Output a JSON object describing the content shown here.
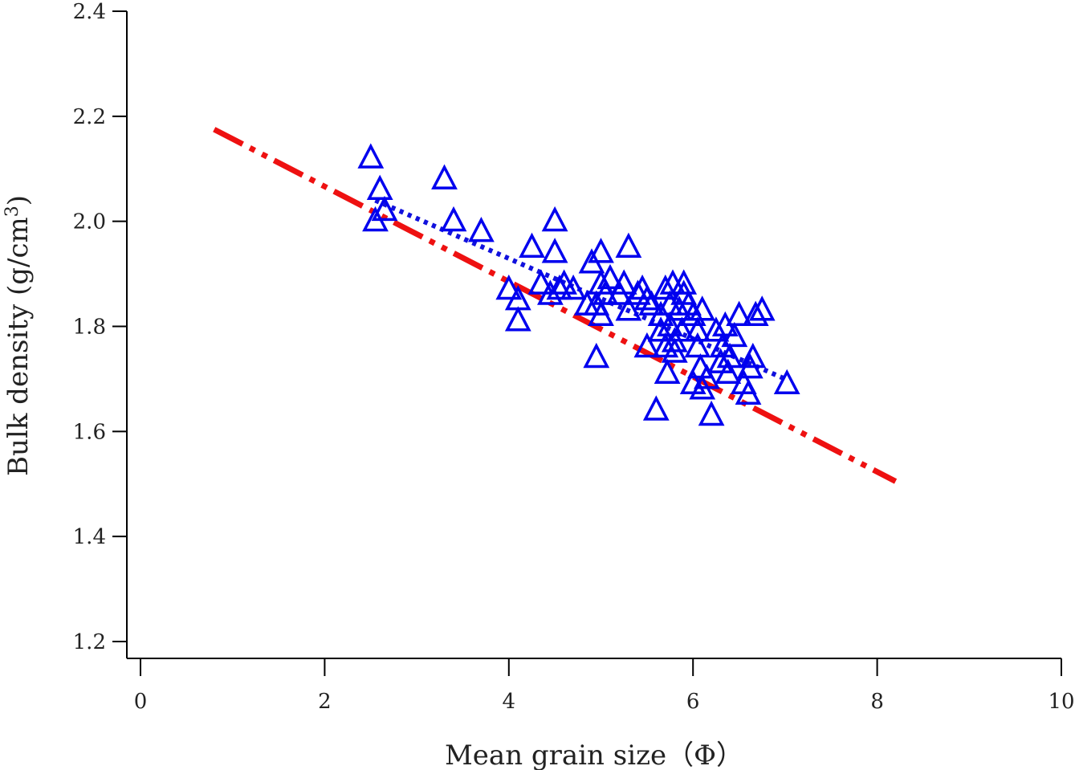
{
  "chart_data": {
    "type": "scatter",
    "xlabel": "Mean grain size（Φ）",
    "ylabel_main": "Bulk density (g/cm",
    "ylabel_sup": "3",
    "ylabel_close": ")",
    "xlim": [
      0,
      10
    ],
    "ylim": [
      1.2,
      2.4
    ],
    "x_ticks": [
      0,
      2,
      4,
      6,
      8,
      10
    ],
    "x_tick_labels": [
      "0",
      "2",
      "4",
      "6",
      "8",
      "10"
    ],
    "y_ticks": [
      1.2,
      1.4,
      1.6,
      1.8,
      2.0,
      2.2,
      2.4
    ],
    "y_tick_labels": [
      "1.2",
      "1.4",
      "1.6",
      "1.8",
      "2.0",
      "2.2",
      "2.4"
    ],
    "grid": false,
    "marker": "triangle-open",
    "marker_color": "#0000ee",
    "points": [
      [
        2.5,
        2.12
      ],
      [
        2.55,
        2.0
      ],
      [
        2.6,
        2.06
      ],
      [
        2.65,
        2.02
      ],
      [
        3.3,
        2.08
      ],
      [
        3.4,
        2.0
      ],
      [
        3.7,
        1.98
      ],
      [
        4.0,
        1.87
      ],
      [
        4.1,
        1.85
      ],
      [
        4.1,
        1.81
      ],
      [
        4.25,
        1.95
      ],
      [
        4.35,
        1.88
      ],
      [
        4.45,
        1.86
      ],
      [
        4.5,
        2.0
      ],
      [
        4.5,
        1.94
      ],
      [
        4.55,
        1.87
      ],
      [
        4.6,
        1.88
      ],
      [
        4.7,
        1.87
      ],
      [
        4.85,
        1.84
      ],
      [
        4.9,
        1.92
      ],
      [
        4.95,
        1.84
      ],
      [
        4.95,
        1.74
      ],
      [
        5.0,
        1.94
      ],
      [
        5.0,
        1.88
      ],
      [
        5.0,
        1.82
      ],
      [
        5.05,
        1.86
      ],
      [
        5.1,
        1.89
      ],
      [
        5.2,
        1.86
      ],
      [
        5.25,
        1.88
      ],
      [
        5.3,
        1.83
      ],
      [
        5.3,
        1.95
      ],
      [
        5.4,
        1.86
      ],
      [
        5.45,
        1.87
      ],
      [
        5.5,
        1.85
      ],
      [
        5.5,
        1.76
      ],
      [
        5.55,
        1.84
      ],
      [
        5.6,
        1.64
      ],
      [
        5.65,
        1.82
      ],
      [
        5.65,
        1.79
      ],
      [
        5.7,
        1.87
      ],
      [
        5.7,
        1.76
      ],
      [
        5.72,
        1.71
      ],
      [
        5.75,
        1.84
      ],
      [
        5.75,
        1.8
      ],
      [
        5.78,
        1.88
      ],
      [
        5.8,
        1.77
      ],
      [
        5.8,
        1.75
      ],
      [
        5.85,
        1.83
      ],
      [
        5.88,
        1.79
      ],
      [
        5.9,
        1.86
      ],
      [
        5.9,
        1.88
      ],
      [
        5.95,
        1.84
      ],
      [
        6.0,
        1.82
      ],
      [
        6.0,
        1.69
      ],
      [
        6.05,
        1.79
      ],
      [
        6.05,
        1.76
      ],
      [
        6.08,
        1.72
      ],
      [
        6.1,
        1.83
      ],
      [
        6.1,
        1.68
      ],
      [
        6.15,
        1.7
      ],
      [
        6.2,
        1.63
      ],
      [
        6.25,
        1.79
      ],
      [
        6.3,
        1.73
      ],
      [
        6.32,
        1.76
      ],
      [
        6.35,
        1.8
      ],
      [
        6.38,
        1.71
      ],
      [
        6.4,
        1.74
      ],
      [
        6.45,
        1.78
      ],
      [
        6.5,
        1.82
      ],
      [
        6.55,
        1.69
      ],
      [
        6.6,
        1.67
      ],
      [
        6.62,
        1.72
      ],
      [
        6.65,
        1.74
      ],
      [
        6.68,
        1.82
      ],
      [
        6.75,
        1.83
      ],
      [
        7.02,
        1.69
      ]
    ],
    "lines": [
      {
        "style": "dash-dot-dot",
        "color": "#ee1111",
        "x": [
          0.8,
          8.2
        ],
        "y": [
          2.175,
          1.505
        ]
      },
      {
        "style": "dotted",
        "color": "#1111dd",
        "x": [
          2.55,
          7.0
        ],
        "y": [
          2.04,
          1.7
        ]
      }
    ]
  }
}
